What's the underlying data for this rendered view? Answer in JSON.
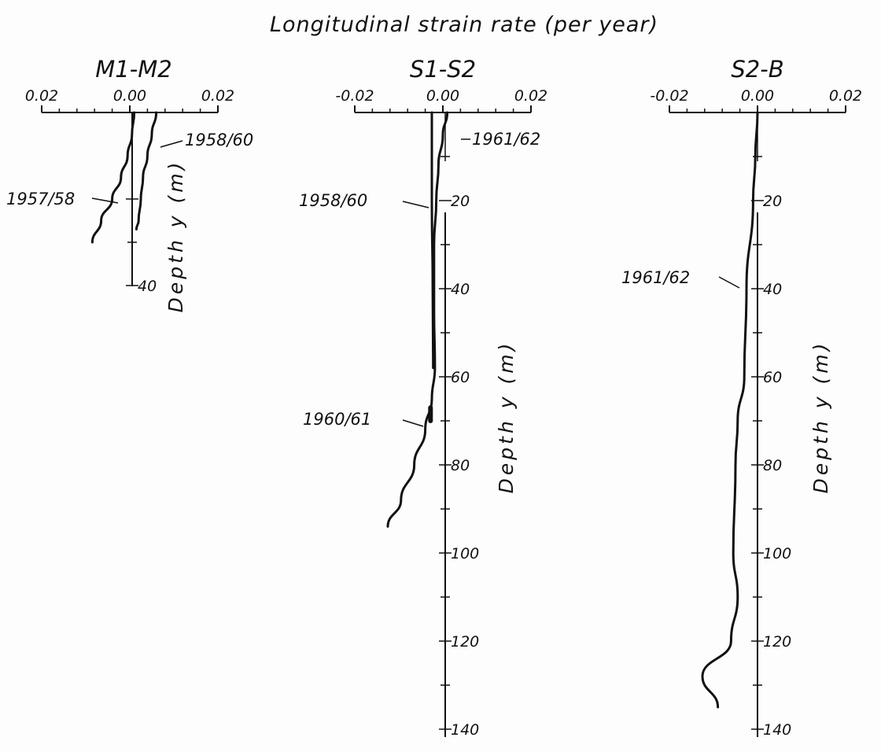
{
  "figure": {
    "title": "Longitudinal strain rate (per year)"
  },
  "chart_data": [
    {
      "type": "line",
      "title": "M1-M2",
      "xlabel": "Longitudinal strain rate (per year)",
      "ylabel": "Depth  y  (m)",
      "xticks": [
        "0.02",
        "0.00",
        "0.02"
      ],
      "xlim": [
        -0.02,
        0.02
      ],
      "yticks": [
        "40"
      ],
      "ylim": [
        0,
        40
      ],
      "series": [
        {
          "name": "1957/58",
          "points": [
            [
              0.001,
              0
            ],
            [
              0.0005,
              5
            ],
            [
              -0.0005,
              10
            ],
            [
              -0.002,
              15
            ],
            [
              -0.004,
              20
            ],
            [
              -0.0065,
              25
            ],
            [
              -0.0085,
              30
            ]
          ]
        },
        {
          "name": "1958/60",
          "points": [
            [
              0.006,
              0
            ],
            [
              0.005,
              5
            ],
            [
              0.004,
              10
            ],
            [
              0.003,
              15
            ],
            [
              0.0025,
              20
            ],
            [
              0.002,
              25
            ],
            [
              0.0015,
              27
            ]
          ]
        }
      ]
    },
    {
      "type": "line",
      "title": "S1-S2",
      "xlabel": "Longitudinal strain rate (per year)",
      "ylabel": "Depth  y  (m)",
      "xticks": [
        "-0.02",
        "0.00",
        "0.02"
      ],
      "xlim": [
        -0.02,
        0.02
      ],
      "yticks": [
        "20",
        "40",
        "60",
        "80",
        "100",
        "120",
        "140"
      ],
      "ylim": [
        0,
        140
      ],
      "series": [
        {
          "name": "1958/60",
          "points": [
            [
              -0.0025,
              0
            ],
            [
              -0.0025,
              20
            ],
            [
              -0.0023,
              40
            ],
            [
              -0.0022,
              58
            ]
          ]
        },
        {
          "name": "1961/62",
          "points": [
            [
              0.001,
              0
            ],
            [
              0.0,
              5
            ],
            [
              -0.001,
              12
            ],
            [
              -0.0015,
              20
            ],
            [
              -0.002,
              30
            ],
            [
              -0.002,
              45
            ],
            [
              -0.0018,
              58
            ],
            [
              -0.0025,
              65
            ],
            [
              -0.004,
              72
            ],
            [
              -0.0065,
              80
            ],
            [
              -0.0095,
              88
            ],
            [
              -0.0125,
              94
            ]
          ]
        },
        {
          "name": "1960/61",
          "points": [
            [
              -0.0028,
              67
            ],
            [
              -0.0028,
              70
            ]
          ]
        }
      ]
    },
    {
      "type": "line",
      "title": "S2-B",
      "xlabel": "Longitudinal strain rate (per year)",
      "ylabel": "Depth  y  (m)",
      "xticks": [
        "-0.02",
        "0.00",
        "0.02"
      ],
      "xlim": [
        -0.02,
        0.02
      ],
      "yticks": [
        "20",
        "40",
        "60",
        "80",
        "100",
        "120",
        "140"
      ],
      "ylim": [
        0,
        140
      ],
      "series": [
        {
          "name": "1961/62",
          "points": [
            [
              0.0,
              0
            ],
            [
              -0.0005,
              10
            ],
            [
              -0.001,
              20
            ],
            [
              -0.0025,
              40
            ],
            [
              -0.003,
              60
            ],
            [
              -0.0045,
              70
            ],
            [
              -0.005,
              80
            ],
            [
              -0.0055,
              100
            ],
            [
              -0.0045,
              110
            ],
            [
              -0.006,
              120
            ],
            [
              -0.0125,
              128
            ],
            [
              -0.009,
              135
            ]
          ]
        }
      ]
    }
  ]
}
